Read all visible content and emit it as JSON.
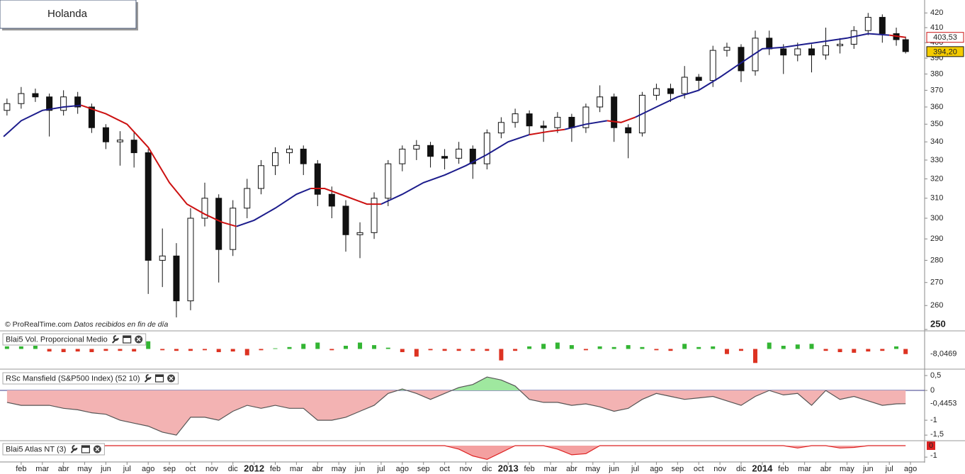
{
  "header": {
    "title": "Holanda"
  },
  "watermark": {
    "source": "© ProRealTime.com",
    "note": "Datos recibidos en fin de día"
  },
  "chart_data": [
    {
      "type": "candlestick",
      "log_scale": true,
      "xlim": [
        0,
        43.5
      ],
      "xticks": [
        {
          "value": 1,
          "label": "feb"
        },
        {
          "value": 2,
          "label": "mar"
        },
        {
          "value": 3,
          "label": "abr"
        },
        {
          "value": 4,
          "label": "may"
        },
        {
          "value": 5,
          "label": "jun"
        },
        {
          "value": 6,
          "label": "jul"
        },
        {
          "value": 7,
          "label": "ago"
        },
        {
          "value": 8,
          "label": "sep"
        },
        {
          "value": 9,
          "label": "oct"
        },
        {
          "value": 10,
          "label": "nov"
        },
        {
          "value": 11,
          "label": "dic"
        },
        {
          "value": 12,
          "label": "2012"
        },
        {
          "value": 13,
          "label": "feb"
        },
        {
          "value": 14,
          "label": "mar"
        },
        {
          "value": 15,
          "label": "abr"
        },
        {
          "value": 16,
          "label": "may"
        },
        {
          "value": 17,
          "label": "jun"
        },
        {
          "value": 18,
          "label": "jul"
        },
        {
          "value": 19,
          "label": "ago"
        },
        {
          "value": 20,
          "label": "sep"
        },
        {
          "value": 21,
          "label": "oct"
        },
        {
          "value": 22,
          "label": "nov"
        },
        {
          "value": 23,
          "label": "dic"
        },
        {
          "value": 24,
          "label": "2013"
        },
        {
          "value": 25,
          "label": "feb"
        },
        {
          "value": 26,
          "label": "mar"
        },
        {
          "value": 27,
          "label": "abr"
        },
        {
          "value": 28,
          "label": "may"
        },
        {
          "value": 29,
          "label": "jun"
        },
        {
          "value": 30,
          "label": "jul"
        },
        {
          "value": 31,
          "label": "ago"
        },
        {
          "value": 32,
          "label": "sep"
        },
        {
          "value": 33,
          "label": "oct"
        },
        {
          "value": 34,
          "label": "nov"
        },
        {
          "value": 35,
          "label": "dic"
        },
        {
          "value": 36,
          "label": "2014"
        },
        {
          "value": 37,
          "label": "feb"
        },
        {
          "value": 38,
          "label": "mar"
        },
        {
          "value": 39,
          "label": "abr"
        },
        {
          "value": 40,
          "label": "may"
        },
        {
          "value": 41,
          "label": "jun"
        },
        {
          "value": 42,
          "label": "jul"
        },
        {
          "value": 43,
          "label": "ago"
        }
      ],
      "ylim": [
        250,
        429
      ],
      "yticks": [
        250,
        260,
        270,
        280,
        290,
        300,
        310,
        320,
        330,
        340,
        350,
        360,
        370,
        380,
        390,
        400,
        410,
        420
      ],
      "up_color": "#ffffff",
      "down_color": "#111111",
      "x": [
        0.33,
        1,
        1.67,
        2.33,
        3,
        3.67,
        4.33,
        5,
        5.67,
        6.33,
        7,
        7.67,
        8.33,
        9,
        9.67,
        10.33,
        11,
        11.67,
        12.33,
        13,
        13.67,
        14.33,
        15,
        15.67,
        16.33,
        17,
        17.67,
        18.33,
        19,
        19.67,
        20.33,
        21,
        21.67,
        22.33,
        23,
        23.67,
        24.33,
        25,
        25.67,
        26.33,
        27,
        27.67,
        28.33,
        29,
        29.67,
        30.33,
        31,
        31.67,
        32.33,
        33,
        33.67,
        34.33,
        35,
        35.67,
        36.33,
        37,
        37.67,
        38.33,
        39,
        39.67,
        40.33,
        41,
        41.67,
        42.33,
        42.77
      ],
      "open": [
        358,
        362,
        368,
        366,
        358,
        366,
        360,
        348,
        340,
        341,
        334,
        280,
        282,
        262,
        300,
        310,
        285,
        305,
        315,
        327,
        334,
        336,
        328,
        312,
        306,
        292,
        293,
        310,
        328,
        336,
        338,
        332,
        331,
        336,
        328,
        345,
        351,
        356,
        349,
        348,
        354,
        348,
        360,
        366,
        348,
        345,
        367,
        371,
        368,
        378,
        376,
        395,
        397,
        382,
        403,
        396,
        392,
        396,
        392,
        398,
        399,
        408,
        417,
        406,
        402
      ],
      "high": [
        365,
        372,
        371,
        368,
        370,
        369,
        362,
        350,
        346,
        346,
        336,
        295,
        288,
        305,
        318,
        312,
        309,
        320,
        330,
        337,
        338,
        338,
        330,
        316,
        309,
        298,
        313,
        330,
        338,
        341,
        340,
        336,
        340,
        338,
        347,
        354,
        359,
        358,
        352,
        357,
        356,
        362,
        373,
        368,
        350,
        369,
        374,
        374,
        385,
        380,
        398,
        400,
        399,
        408,
        408,
        399,
        400,
        399,
        410,
        403,
        411,
        420,
        419,
        410,
        404
      ],
      "low": [
        355,
        359,
        363,
        343,
        355,
        356,
        345,
        336,
        327,
        326,
        265,
        268,
        255,
        258,
        296,
        270,
        282,
        300,
        312,
        322,
        328,
        322,
        306,
        300,
        284,
        281,
        290,
        306,
        324,
        330,
        326,
        325,
        328,
        320,
        325,
        342,
        348,
        344,
        340,
        345,
        340,
        345,
        357,
        340,
        331,
        343,
        364,
        363,
        365,
        370,
        372,
        391,
        375,
        379,
        392,
        380,
        388,
        381,
        389,
        393,
        396,
        405,
        400,
        398,
        393
      ],
      "close": [
        362,
        368,
        366,
        358,
        366,
        360,
        348,
        340,
        341,
        334,
        280,
        282,
        262,
        300,
        310,
        285,
        305,
        315,
        327,
        334,
        336,
        328,
        312,
        306,
        292,
        293,
        310,
        328,
        336,
        338,
        332,
        331,
        336,
        328,
        345,
        351,
        356,
        349,
        348,
        354,
        348,
        360,
        366,
        348,
        345,
        367,
        371,
        368,
        378,
        376,
        395,
        397,
        382,
        403,
        396,
        392,
        396,
        392,
        398,
        399,
        408,
        417,
        406,
        402,
        394.2
      ],
      "series": [
        {
          "color": "#1c1c8c",
          "x": [
            0.17,
            1,
            2,
            3,
            3.83,
            5,
            6,
            7,
            8,
            8.83,
            9.67,
            10.5,
            11.17,
            12,
            13,
            14,
            14.67,
            15.33,
            16.33,
            17.33,
            18,
            19,
            20,
            21,
            22,
            23,
            24,
            25,
            26,
            26.67,
            27.67,
            28.67,
            29.33,
            30,
            31,
            32,
            33,
            34,
            35,
            36,
            37,
            38,
            39,
            40,
            41,
            42,
            42.77
          ],
          "values": [
            343,
            352,
            358,
            360,
            361,
            null,
            null,
            null,
            null,
            null,
            null,
            null,
            296,
            299,
            305,
            312,
            315,
            null,
            null,
            null,
            307,
            312,
            318,
            322,
            327,
            333,
            340,
            344,
            null,
            347,
            350,
            352,
            null,
            354,
            360,
            366,
            370,
            378,
            387,
            396,
            397,
            399,
            401,
            403,
            406,
            405,
            null
          ]
        },
        {
          "color": "#cc1111",
          "x": [
            0.17,
            1,
            2,
            3,
            3.83,
            5,
            6,
            7,
            8,
            8.83,
            9.67,
            10.5,
            11.17,
            12,
            13,
            14,
            14.67,
            15.33,
            16.33,
            17.33,
            18,
            19,
            20,
            21,
            22,
            23,
            24,
            25,
            26,
            26.67,
            27.67,
            28.67,
            29.33,
            30,
            31,
            32,
            33,
            34,
            35,
            36,
            37,
            38,
            39,
            40,
            41,
            42,
            42.77
          ],
          "values": [
            null,
            null,
            null,
            null,
            361,
            356,
            350,
            337,
            318,
            307,
            302,
            298,
            296,
            null,
            null,
            null,
            315,
            315,
            311,
            307,
            307,
            null,
            null,
            null,
            null,
            null,
            null,
            344,
            346,
            347,
            null,
            352,
            351,
            354,
            null,
            null,
            null,
            null,
            null,
            null,
            null,
            null,
            null,
            null,
            null,
            405,
            403.53
          ]
        }
      ],
      "markers": [
        {
          "value": 403.53,
          "label": "403,53",
          "color": "#cc1111",
          "background": "#ffffff"
        },
        {
          "value": 394.2,
          "label": "394,20",
          "color": "#111111",
          "background": "#f5cc00"
        }
      ]
    },
    {
      "type": "bar",
      "title": "Blai5 Vol. Proporcional Medio",
      "ylim": [
        -25,
        25
      ],
      "up_color": "#33b533",
      "down_color": "#dd3322",
      "x": [
        0.33,
        1,
        1.67,
        2.33,
        3,
        3.67,
        4.33,
        5,
        5.67,
        6.33,
        7,
        7.67,
        8.33,
        9,
        9.67,
        10.33,
        11,
        11.67,
        12.33,
        13,
        13.67,
        14.33,
        15,
        15.67,
        16.33,
        17,
        17.67,
        18.33,
        19,
        19.67,
        20.33,
        21,
        21.67,
        22.33,
        23,
        23.67,
        24.33,
        25,
        25.67,
        26.33,
        27,
        27.67,
        28.33,
        29,
        29.67,
        30.33,
        31,
        31.67,
        32.33,
        33,
        33.67,
        34.33,
        35,
        35.67,
        36.33,
        37,
        37.67,
        38.33,
        39,
        39.67,
        40.33,
        41,
        41.67,
        42.33,
        42.77
      ],
      "values": [
        4,
        4,
        5,
        -4,
        -5,
        -4,
        -5,
        -3,
        -3,
        -4,
        12,
        -2,
        -3,
        -3,
        -2,
        -5,
        -4,
        -10,
        -2,
        1,
        3,
        8,
        10,
        -2,
        5,
        10,
        6,
        2,
        -5,
        -12,
        -2,
        -3,
        -3,
        -3,
        -3,
        -18,
        -3,
        4,
        8,
        10,
        6,
        -2,
        4,
        3,
        6,
        3,
        -2,
        -3,
        8,
        3,
        4,
        -8,
        -3,
        -22,
        10,
        5,
        7,
        8,
        -3,
        -5,
        -6,
        -4,
        -3,
        4,
        -8.0469
      ],
      "last_label": {
        "value": -8.0469,
        "label": "-8,0469",
        "color": "#dd3322"
      }
    },
    {
      "type": "area",
      "title": "RSc Mansfield (S&P500 Index) (52 10)",
      "ylim": [
        -1.64,
        0.62
      ],
      "yticks": [
        {
          "value": 0.5,
          "label": "0,5"
        },
        0,
        -1,
        {
          "value": -1.5,
          "label": "-1,5"
        }
      ],
      "pos_color": "#9fe89f",
      "neg_color": "#f3b3b3",
      "line_color": "#555555",
      "baseline_color": "#3a3a8a",
      "x": [
        0.33,
        1,
        1.67,
        2.33,
        3,
        3.67,
        4.33,
        5,
        5.67,
        6.33,
        7,
        7.67,
        8.33,
        9,
        9.67,
        10.33,
        11,
        11.67,
        12.33,
        13,
        13.67,
        14.33,
        15,
        15.67,
        16.33,
        17,
        17.67,
        18.33,
        19,
        19.67,
        20.33,
        21,
        21.67,
        22.33,
        23,
        23.67,
        24.33,
        25,
        25.67,
        26.33,
        27,
        27.67,
        28.33,
        29,
        29.67,
        30.33,
        31,
        31.67,
        32.33,
        33,
        33.67,
        34.33,
        35,
        35.67,
        36.33,
        37,
        37.67,
        38.33,
        39,
        39.67,
        40.33,
        41,
        41.67,
        42.33,
        42.77
      ],
      "values": [
        -0.4,
        -0.5,
        -0.5,
        -0.5,
        -0.6,
        -0.65,
        -0.75,
        -0.8,
        -1.0,
        -1.1,
        -1.2,
        -1.4,
        -1.5,
        -0.9,
        -0.9,
        -1.0,
        -0.7,
        -0.5,
        -0.6,
        -0.5,
        -0.6,
        -0.6,
        -1.0,
        -1.0,
        -0.9,
        -0.7,
        -0.5,
        -0.1,
        0.05,
        -0.1,
        -0.3,
        -0.1,
        0.1,
        0.2,
        0.45,
        0.35,
        0.15,
        -0.3,
        -0.4,
        -0.4,
        -0.5,
        -0.45,
        -0.55,
        -0.7,
        -0.6,
        -0.3,
        -0.1,
        -0.2,
        -0.3,
        -0.25,
        -0.2,
        -0.35,
        -0.5,
        -0.2,
        0.0,
        -0.15,
        -0.1,
        -0.5,
        0.0,
        -0.3,
        -0.2,
        -0.35,
        -0.5,
        -0.45,
        -0.4453
      ],
      "last_label": {
        "value": -0.4453,
        "label": "-0,4453",
        "color": "#111111"
      }
    },
    {
      "type": "area",
      "title": "Blai5 Atlas NT (3)",
      "ylim": [
        -1.3,
        0.25
      ],
      "yticks": [
        -1
      ],
      "pos_color": "#9fe89f",
      "neg_color": "#f4a0a0",
      "line_color": "#dd2222",
      "x": [
        0.33,
        1,
        1.67,
        2.33,
        3,
        3.67,
        4.33,
        5,
        5.67,
        6.33,
        7,
        7.67,
        8.33,
        9,
        9.67,
        10.33,
        11,
        11.67,
        12.33,
        13,
        13.67,
        14.33,
        15,
        15.67,
        16.33,
        17,
        17.67,
        18.33,
        19,
        19.67,
        20.33,
        21,
        21.67,
        22.33,
        23,
        23.67,
        24.33,
        25,
        25.67,
        26.33,
        27,
        27.67,
        28.33,
        29,
        29.67,
        30.33,
        31,
        31.67,
        32.33,
        33,
        33.67,
        34.33,
        35,
        35.67,
        36.33,
        37,
        37.67,
        38.33,
        39,
        39.67,
        40.33,
        41,
        41.67,
        42.33,
        42.77
      ],
      "values": [
        0,
        0,
        0,
        0,
        -0.1,
        -0.3,
        -0.1,
        0,
        0,
        0,
        0,
        0,
        0,
        0,
        0,
        0,
        0,
        0,
        0,
        0,
        0,
        0,
        0,
        0,
        0,
        0,
        0,
        0,
        0,
        0,
        0,
        0,
        -0.3,
        -0.9,
        -1.2,
        -0.6,
        0,
        0,
        0,
        -0.3,
        -0.8,
        -0.7,
        0,
        0,
        0,
        0,
        0,
        0,
        0,
        0,
        0,
        0,
        0,
        0,
        0,
        0,
        -0.2,
        0,
        0,
        -0.2,
        -0.15,
        0,
        0,
        0,
        0
      ],
      "last_label": {
        "value": 0,
        "label": "0",
        "color": "#ffffff",
        "background": "#dd2222"
      }
    }
  ]
}
